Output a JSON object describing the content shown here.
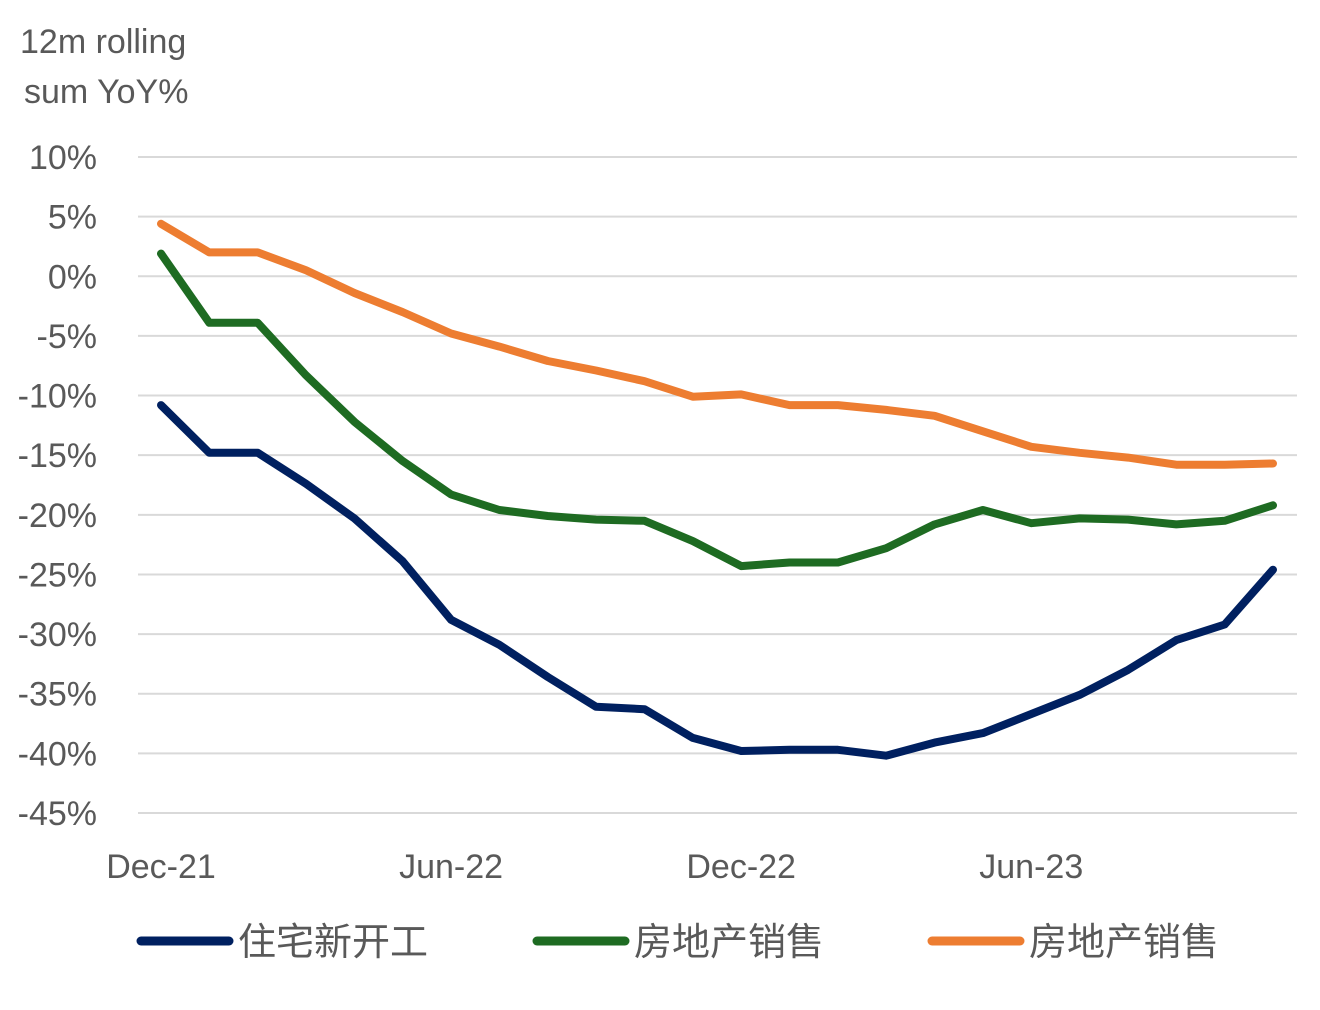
{
  "chart_data": {
    "type": "line",
    "title": "",
    "ylabel": [
      "12m rolling",
      "sum YoY%"
    ],
    "xlabel": "",
    "ylim": [
      -45,
      10
    ],
    "ytick_step": 5,
    "ytick_labels": [
      "10%",
      "5%",
      "0%",
      "-5%",
      "-10%",
      "-15%",
      "-20%",
      "-25%",
      "-30%",
      "-35%",
      "-40%",
      "-45%"
    ],
    "x_tick_labels": [
      {
        "index": 0,
        "label": "Dec-21"
      },
      {
        "index": 6,
        "label": "Jun-22"
      },
      {
        "index": 12,
        "label": "Dec-22"
      },
      {
        "index": 18,
        "label": "Jun-23"
      }
    ],
    "point_count": 24,
    "legend_position": "bottom",
    "grid": true,
    "series": [
      {
        "name": "住宅新开工",
        "color": "#002060",
        "values": [
          -10.8,
          -14.8,
          -14.8,
          -17.4,
          -20.3,
          -23.9,
          -28.8,
          -30.9,
          -33.6,
          -36.1,
          -36.3,
          -38.7,
          -39.8,
          -39.7,
          -39.7,
          -40.2,
          -39.1,
          -38.3,
          -36.7,
          -35.1,
          -33.0,
          -30.5,
          -29.2,
          -24.6
        ]
      },
      {
        "name": "房地产销售",
        "color": "#1e6b22",
        "values": [
          1.9,
          -3.9,
          -3.9,
          -8.3,
          -12.2,
          -15.5,
          -18.3,
          -19.6,
          -20.1,
          -20.4,
          -20.5,
          -22.2,
          -24.3,
          -24.0,
          -24.0,
          -22.8,
          -20.8,
          -19.6,
          -20.7,
          -20.3,
          -20.4,
          -20.8,
          -20.5,
          -19.2
        ]
      },
      {
        "name": "房地产销售",
        "color": "#ed7d31",
        "values": [
          4.4,
          2.0,
          2.0,
          0.5,
          -1.4,
          -3.0,
          -4.8,
          -5.9,
          -7.1,
          -7.9,
          -8.8,
          -10.1,
          -9.9,
          -10.8,
          -10.8,
          -11.2,
          -11.7,
          -13.0,
          -14.3,
          -14.8,
          -15.2,
          -15.8,
          -15.8,
          -15.7
        ]
      }
    ]
  }
}
